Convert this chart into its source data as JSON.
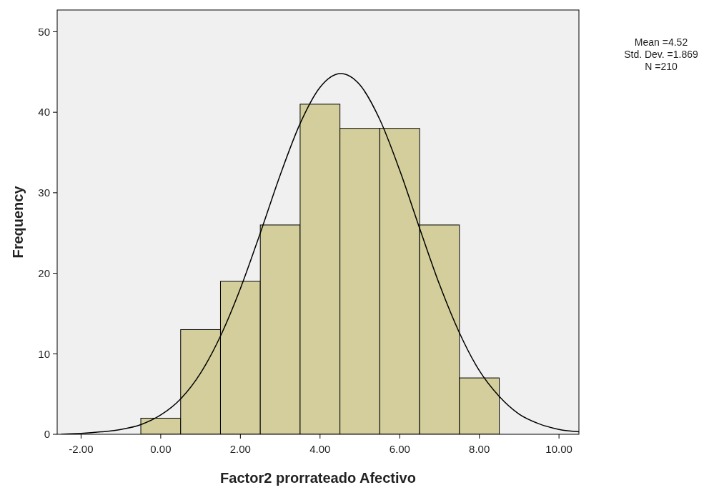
{
  "chart_data": {
    "type": "histogram",
    "xlabel": "Factor2 prorrateado Afectivo",
    "ylabel": "Frequency",
    "bins": [
      -0.5,
      0.5,
      1.5,
      2.5,
      3.5,
      4.5,
      5.5,
      6.5,
      7.5,
      8.5
    ],
    "values": [
      2,
      13,
      19,
      26,
      41,
      38,
      38,
      26,
      7
    ],
    "color": "#d3ce9b",
    "series": [
      {
        "type": "line",
        "color": "#000000",
        "x": [
          -2.5,
          -2,
          -1.5,
          -1,
          -0.5,
          0,
          0.5,
          1,
          1.5,
          2,
          2.5,
          3,
          3.5,
          4,
          4.52,
          5,
          5.5,
          6,
          6.5,
          7,
          7.5,
          8,
          8.5,
          9,
          9.5,
          10,
          10.5
        ],
        "values": [
          0,
          0.1,
          0.3,
          0.6,
          1.2,
          2.4,
          4.4,
          7.6,
          12.2,
          18.1,
          25,
          32.2,
          38.6,
          43.1,
          44.8,
          43.4,
          39.1,
          32.8,
          25.6,
          18.6,
          12.6,
          7.9,
          4.7,
          2.5,
          1.3,
          0.6,
          0.3
        ]
      }
    ],
    "xlim": [
      -2.6,
      10.5
    ],
    "ylim": [
      0,
      52.7
    ],
    "xticks": [
      {
        "value": -2,
        "label": "-2.00"
      },
      {
        "value": 0,
        "label": "0.00"
      },
      {
        "value": 2,
        "label": "2.00"
      },
      {
        "value": 4,
        "label": "4.00"
      },
      {
        "value": 6,
        "label": "6.00"
      },
      {
        "value": 8,
        "label": "8.00"
      },
      {
        "value": 10,
        "label": "10.00"
      }
    ],
    "yticks": [
      0,
      10,
      20,
      30,
      40,
      50
    ],
    "grid": false,
    "annotations": [
      "Mean =4.52",
      "Std. Dev. =1.869",
      "N =210"
    ]
  }
}
